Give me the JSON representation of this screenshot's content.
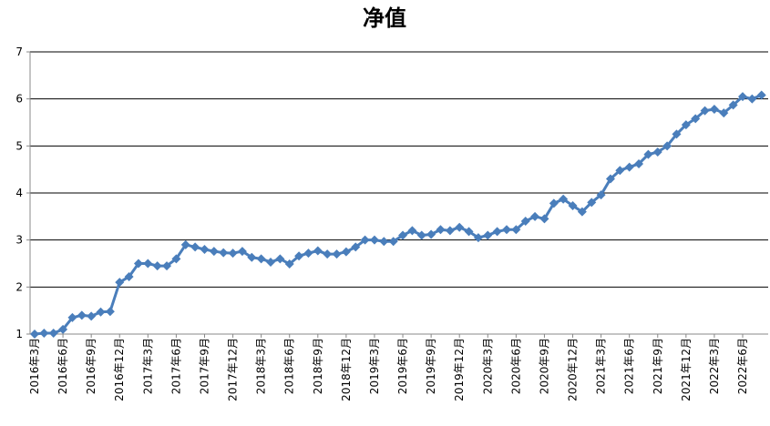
{
  "chart_data": {
    "type": "line",
    "title": "净值",
    "categories": [
      "2016年3月",
      null,
      null,
      "2016年6月",
      null,
      null,
      "2016年9月",
      null,
      null,
      "2016年12月",
      null,
      null,
      "2017年3月",
      null,
      null,
      "2017年6月",
      null,
      null,
      "2017年9月",
      null,
      null,
      "2017年12月",
      null,
      null,
      "2018年3月",
      null,
      null,
      "2018年6月",
      null,
      null,
      "2018年9月",
      null,
      null,
      "2018年12月",
      null,
      null,
      "2019年3月",
      null,
      null,
      "2019年6月",
      null,
      null,
      "2019年9月",
      null,
      null,
      "2019年12月",
      null,
      null,
      "2020年3月",
      null,
      null,
      "2020年6月",
      null,
      null,
      "2020年9月",
      null,
      null,
      "2020年12月",
      null,
      null,
      "2021年3月",
      null,
      null,
      "2021年6月",
      null,
      null,
      "2021年9月",
      null,
      null,
      "2021年12月",
      null,
      null,
      "2022年3月",
      null,
      null,
      "2022年6月",
      null,
      null
    ],
    "values": [
      1.0,
      1.02,
      1.02,
      1.1,
      1.35,
      1.4,
      1.38,
      1.47,
      1.48,
      2.1,
      2.22,
      2.5,
      2.5,
      2.45,
      2.45,
      2.6,
      2.9,
      2.85,
      2.8,
      2.76,
      2.73,
      2.72,
      2.76,
      2.63,
      2.6,
      2.53,
      2.6,
      2.49,
      2.66,
      2.72,
      2.77,
      2.7,
      2.7,
      2.75,
      2.85,
      3.0,
      3.0,
      2.97,
      2.97,
      3.1,
      3.2,
      3.1,
      3.12,
      3.22,
      3.2,
      3.27,
      3.18,
      3.05,
      3.1,
      3.18,
      3.22,
      3.22,
      3.4,
      3.5,
      3.45,
      3.78,
      3.87,
      3.73,
      3.6,
      3.8,
      3.96,
      4.3,
      4.48,
      4.55,
      4.62,
      4.82,
      4.87,
      5.0,
      5.25,
      5.45,
      5.58,
      5.75,
      5.78,
      5.7,
      5.87,
      6.05,
      6.0,
      6.08
    ],
    "color": "#4a7ebb",
    "ylim": [
      1,
      7
    ],
    "yticks": [
      1,
      2,
      3,
      4,
      5,
      6,
      7
    ],
    "grid": true
  }
}
